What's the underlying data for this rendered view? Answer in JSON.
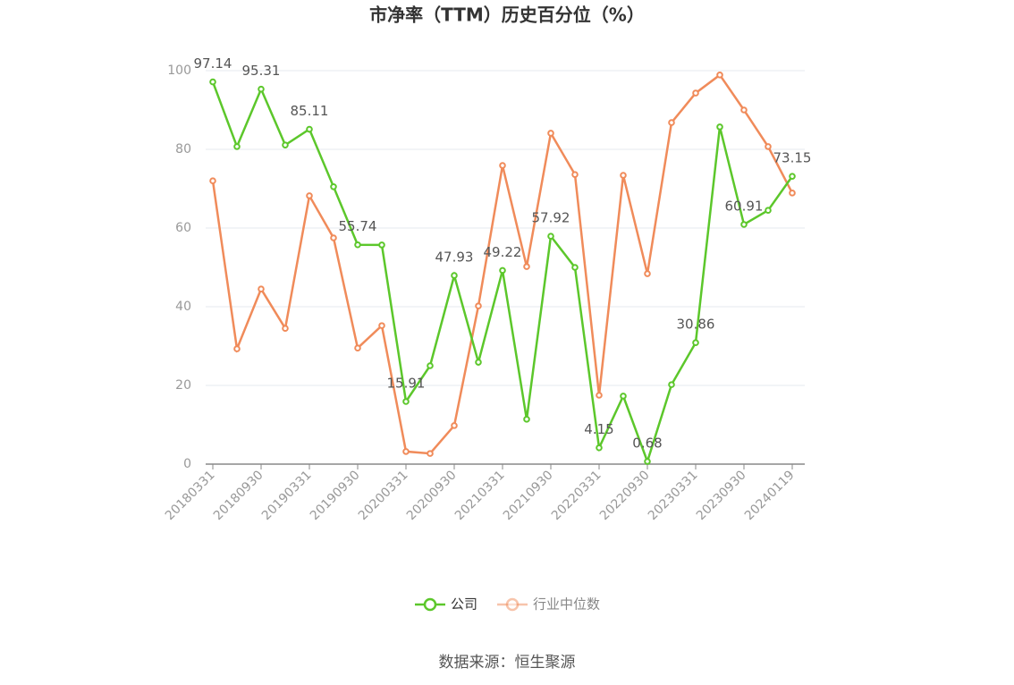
{
  "chart_data": {
    "type": "line",
    "title": "市净率（TTM）历史百分位（%）",
    "source": "数据来源：恒生聚源",
    "categories": [
      "20180331",
      null,
      "20180930",
      null,
      "20190331",
      null,
      "20190930",
      null,
      "20200331",
      null,
      "20200930",
      null,
      "20210331",
      null,
      "20210930",
      null,
      "20220331",
      null,
      "20220930",
      null,
      "20230331",
      null,
      "20230930",
      null,
      "20240119"
    ],
    "series": [
      {
        "name": "公司",
        "color": "#5cc72b",
        "values": [
          97.14,
          80.7,
          95.31,
          81.1,
          85.11,
          70.5,
          55.74,
          55.7,
          15.91,
          25.0,
          47.93,
          25.9,
          49.22,
          11.4,
          57.92,
          50.0,
          4.15,
          17.3,
          0.68,
          20.2,
          30.86,
          85.7,
          60.91,
          64.5,
          73.15
        ],
        "value_labels": [
          "97.14",
          null,
          "95.31",
          null,
          "85.11",
          null,
          "55.74",
          null,
          "15.91",
          null,
          "47.93",
          null,
          "49.22",
          null,
          "57.92",
          null,
          "4.15",
          null,
          "0.68",
          null,
          "30.86",
          null,
          "60.91",
          null,
          "73.15"
        ]
      },
      {
        "name": "行业中位数",
        "color": "#f08b5a",
        "values": [
          72.0,
          29.3,
          44.5,
          34.5,
          68.2,
          57.5,
          29.5,
          35.2,
          3.2,
          2.7,
          9.8,
          40.2,
          75.9,
          50.2,
          84.1,
          73.6,
          17.5,
          73.4,
          48.4,
          86.8,
          94.3,
          98.9,
          90.0,
          80.7,
          68.9
        ]
      }
    ],
    "ylim": [
      0,
      100
    ],
    "yticks": [
      0,
      20,
      40,
      60,
      80,
      100
    ],
    "grid": true
  }
}
